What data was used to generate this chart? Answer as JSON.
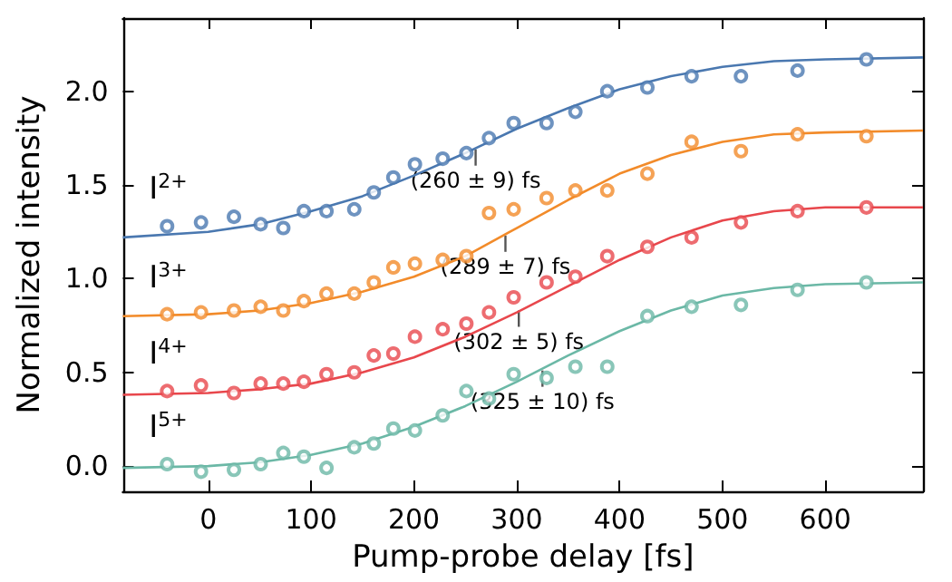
{
  "chart_data": {
    "type": "scatter",
    "xlabel": "Pump-probe delay [fs]",
    "ylabel": "Normalized intensity",
    "xlim": [
      -83,
      695
    ],
    "ylim": [
      -0.135,
      2.39
    ],
    "xticks": [
      0,
      100,
      200,
      300,
      400,
      500,
      600
    ],
    "yticks": [
      {
        "value": 0,
        "label": "0.0"
      },
      {
        "value": 0.5,
        "label": "0.5"
      },
      {
        "value": 1,
        "label": "1.0"
      },
      {
        "value": 1.5,
        "label": "1.5"
      },
      {
        "value": 2,
        "label": "2.0"
      }
    ],
    "grid": false,
    "marker": "circle",
    "x": [
      -40,
      -7,
      25,
      51,
      73,
      93,
      115,
      142,
      161,
      180,
      201,
      228,
      251,
      273,
      297,
      329,
      357,
      388,
      427,
      470,
      518,
      573,
      640
    ],
    "series": [
      {
        "name": "I$^{2+}$",
        "color": "#4a78b0",
        "values": [
          1.28,
          1.3,
          1.33,
          1.29,
          1.27,
          1.36,
          1.36,
          1.37,
          1.46,
          1.54,
          1.61,
          1.64,
          1.67,
          1.75,
          1.83,
          1.83,
          1.89,
          2.0,
          2.02,
          2.08,
          2.08,
          2.11,
          2.17
        ]
      },
      {
        "name": "I$^{3+}$",
        "color": "#f28b2a",
        "values": [
          0.81,
          0.82,
          0.83,
          0.85,
          0.83,
          0.88,
          0.92,
          0.92,
          0.98,
          1.06,
          1.08,
          1.1,
          1.12,
          1.35,
          1.37,
          1.43,
          1.47,
          1.47,
          1.56,
          1.73,
          1.68,
          1.77,
          1.76
        ]
      },
      {
        "name": "I$^{4+}$",
        "color": "#e8474c",
        "values": [
          0.4,
          0.43,
          0.39,
          0.44,
          0.44,
          0.45,
          0.49,
          0.5,
          0.59,
          0.6,
          0.69,
          0.73,
          0.76,
          0.82,
          0.9,
          0.98,
          1.01,
          1.12,
          1.17,
          1.22,
          1.3,
          1.36,
          1.38
        ]
      },
      {
        "name": "I$^{5+}$",
        "color": "#6bb8a6",
        "values": [
          0.01,
          -0.03,
          -0.02,
          0.01,
          0.07,
          0.05,
          -0.01,
          0.1,
          0.12,
          0.2,
          0.19,
          0.27,
          0.4,
          0.36,
          0.49,
          0.47,
          0.53,
          0.53,
          0.8,
          0.85,
          0.86,
          0.94,
          0.98
        ]
      },
      {
        "type": "line",
        "color": "#4a78b0",
        "marker": "none",
        "x": [
          -83,
          0,
          50,
          100,
          150,
          200,
          250,
          300,
          350,
          400,
          450,
          500,
          550,
          600,
          695
        ],
        "values": [
          1.22,
          1.25,
          1.29,
          1.36,
          1.44,
          1.55,
          1.67,
          1.8,
          1.91,
          2.01,
          2.08,
          2.13,
          2.16,
          2.17,
          2.18
        ]
      },
      {
        "type": "line",
        "color": "#f28b2a",
        "marker": "none",
        "x": [
          -83,
          0,
          50,
          100,
          150,
          200,
          250,
          300,
          350,
          400,
          450,
          500,
          550,
          600,
          695
        ],
        "values": [
          0.8,
          0.81,
          0.83,
          0.87,
          0.93,
          1.01,
          1.12,
          1.27,
          1.42,
          1.56,
          1.66,
          1.73,
          1.77,
          1.78,
          1.79
        ]
      },
      {
        "type": "line",
        "color": "#e8474c",
        "marker": "none",
        "x": [
          -83,
          0,
          50,
          100,
          150,
          200,
          250,
          300,
          350,
          400,
          450,
          500,
          550,
          600,
          695
        ],
        "values": [
          0.38,
          0.39,
          0.41,
          0.44,
          0.5,
          0.58,
          0.69,
          0.82,
          0.96,
          1.1,
          1.22,
          1.31,
          1.36,
          1.38,
          1.38
        ]
      },
      {
        "type": "line",
        "color": "#6bb8a6",
        "marker": "none",
        "x": [
          -83,
          0,
          50,
          100,
          150,
          200,
          250,
          300,
          350,
          400,
          450,
          500,
          550,
          600,
          695
        ],
        "values": [
          -0.01,
          0,
          0.02,
          0.06,
          0.12,
          0.21,
          0.32,
          0.45,
          0.59,
          0.72,
          0.83,
          0.91,
          0.95,
          0.97,
          0.98
        ]
      }
    ],
    "annotations": [
      {
        "text": "(260 ± 9) fs",
        "x": 260,
        "y": 1.69
      },
      {
        "text": "(289 ± 7) fs",
        "x": 289,
        "y": 1.23
      },
      {
        "text": "(302 ± 5) fs",
        "x": 302,
        "y": 0.83
      },
      {
        "text": "(325 ± 10) fs",
        "x": 325,
        "y": 0.51
      }
    ]
  }
}
